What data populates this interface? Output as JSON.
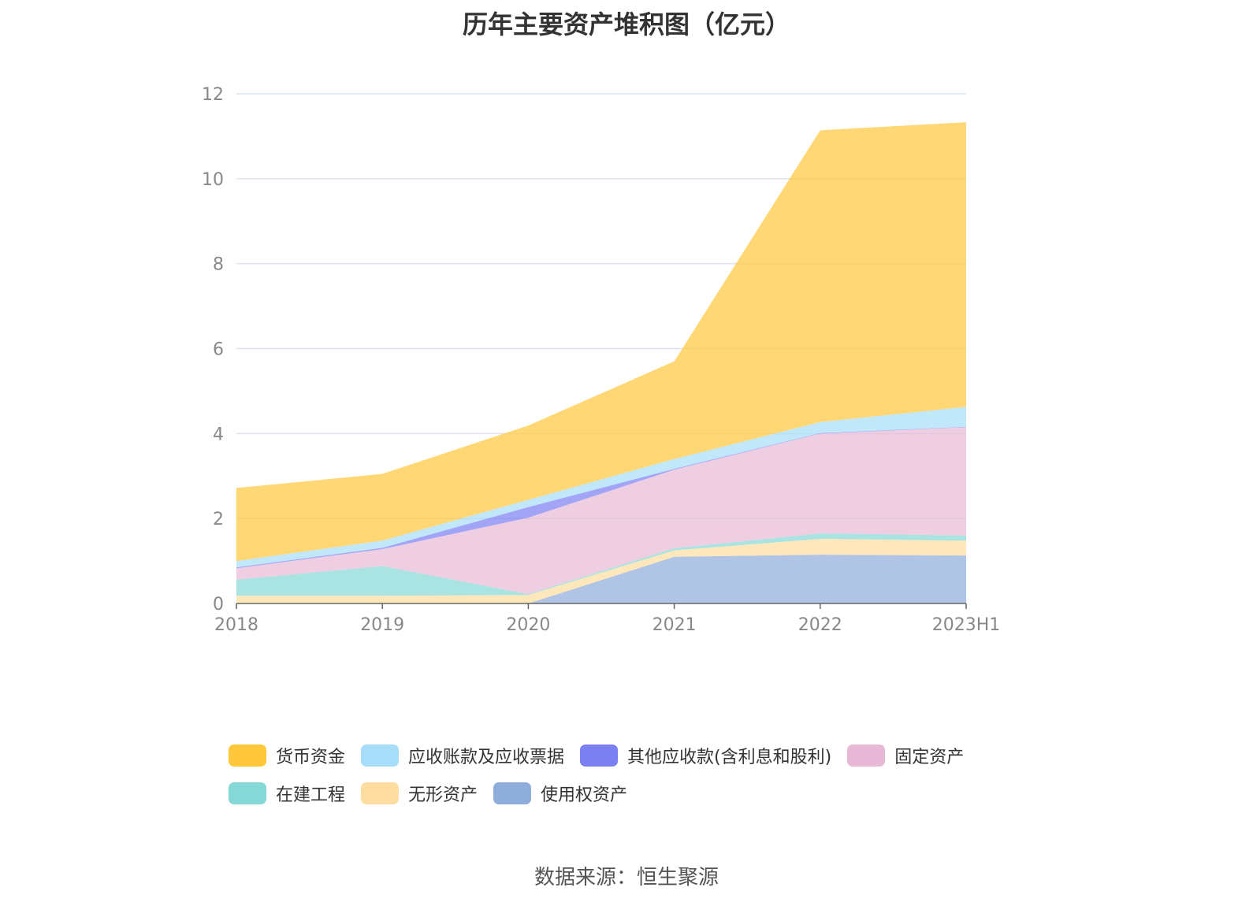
{
  "chart_data": {
    "type": "area",
    "stacked": true,
    "title": "历年主要资产堆积图（亿元）",
    "xlabel": "",
    "ylabel": "",
    "categories": [
      "2018",
      "2019",
      "2020",
      "2021",
      "2022",
      "2023H1"
    ],
    "ylim": [
      0,
      12
    ],
    "yticks": [
      "0",
      "2",
      "4",
      "6",
      "8",
      "10",
      "12"
    ],
    "grid": true,
    "legend_position": "bottom",
    "series": [
      {
        "name": "使用权资产",
        "color": "#8FADDA",
        "values": [
          0,
          0,
          0,
          1.1,
          1.15,
          1.13
        ]
      },
      {
        "name": "无形资产",
        "color": "#FFDDA0",
        "values": [
          0.18,
          0.18,
          0.2,
          0.15,
          0.37,
          0.35
        ]
      },
      {
        "name": "在建工程",
        "color": "#84D9D6",
        "values": [
          0.38,
          0.7,
          0.02,
          0.05,
          0.13,
          0.12
        ]
      },
      {
        "name": "固定资产",
        "color": "#E8B9D6",
        "values": [
          0.27,
          0.4,
          1.8,
          1.85,
          2.35,
          2.55
        ]
      },
      {
        "name": "其他应收款(含利息和股利)",
        "color": "#7A7FF2",
        "values": [
          0.02,
          0.03,
          0.25,
          0.02,
          0.01,
          0.01
        ]
      },
      {
        "name": "应收账款及应收票据",
        "color": "#A6DDF8",
        "values": [
          0.15,
          0.17,
          0.17,
          0.23,
          0.26,
          0.47
        ]
      },
      {
        "name": "货币资金",
        "color": "#FFC83B",
        "values": [
          1.72,
          1.57,
          1.75,
          2.3,
          6.87,
          6.7
        ]
      }
    ]
  },
  "legend": {
    "rows": [
      [
        {
          "label": "货币资金",
          "color": "#FFC83B"
        },
        {
          "label": "应收账款及应收票据",
          "color": "#A6DDF8"
        },
        {
          "label": "其他应收款(含利息和股利)",
          "color": "#7A7FF2"
        },
        {
          "label": "固定资产",
          "color": "#E8B9D6"
        }
      ],
      [
        {
          "label": "在建工程",
          "color": "#84D9D6"
        },
        {
          "label": "无形资产",
          "color": "#FFDDA0"
        },
        {
          "label": "使用权资产",
          "color": "#8FADDA"
        }
      ]
    ]
  },
  "source": "数据来源：恒生聚源"
}
